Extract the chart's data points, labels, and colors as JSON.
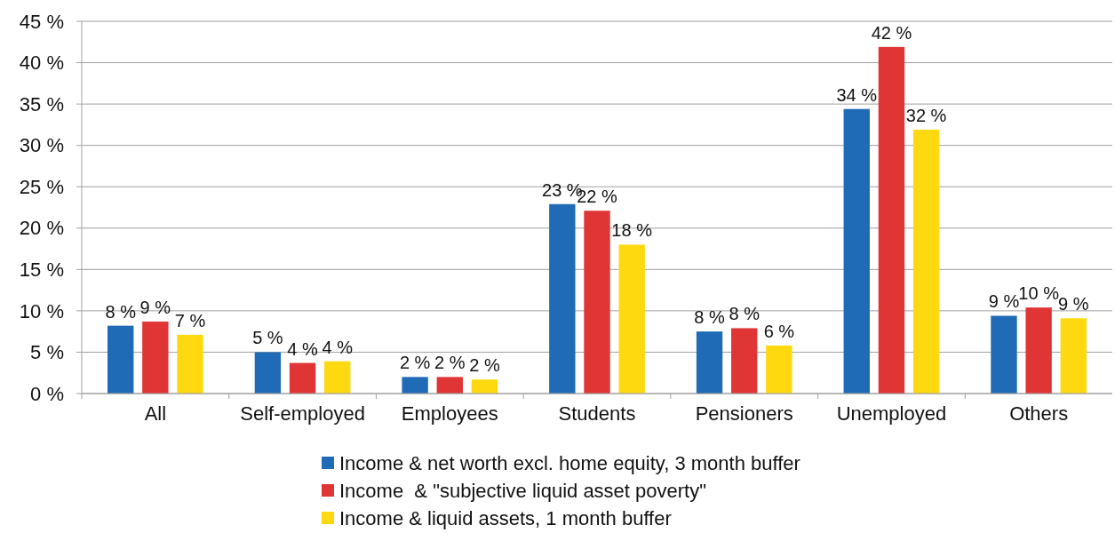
{
  "chart_data": {
    "type": "bar",
    "categories": [
      "All",
      "Self-employed",
      "Employees",
      "Students",
      "Pensioners",
      "Unemployed",
      "Others"
    ],
    "series": [
      {
        "name": "Income & net worth excl. home equity, 3 month buffer",
        "color": "#1f6bb5",
        "values": [
          8.2,
          5.0,
          2.0,
          22.9,
          7.5,
          34.4,
          9.4
        ],
        "value_labels": [
          "8 %",
          "5 %",
          "2 %",
          "23 %",
          "8 %",
          "34 %",
          "9 %"
        ]
      },
      {
        "name": "Income  & \"subjective liquid asset poverty\"",
        "color": "#e03535",
        "values": [
          8.7,
          3.7,
          2.0,
          22.1,
          7.9,
          41.9,
          10.4
        ],
        "value_labels": [
          "9 %",
          "4 %",
          "2 %",
          "22 %",
          "8 %",
          "42 %",
          "10 %"
        ]
      },
      {
        "name": "Income & liquid assets, 1 month buffer",
        "color": "#ffd90f",
        "values": [
          7.1,
          3.9,
          1.7,
          18.0,
          5.8,
          31.9,
          9.1
        ],
        "value_labels": [
          "7 %",
          "4 %",
          "2 %",
          "18 %",
          "6 %",
          "32 %",
          "9 %"
        ]
      }
    ],
    "ylim": [
      0,
      45
    ],
    "yticks": [
      {
        "value": 0,
        "label": "0 %"
      },
      {
        "value": 5,
        "label": "5 %"
      },
      {
        "value": 10,
        "label": "10 %"
      },
      {
        "value": 15,
        "label": "15 %"
      },
      {
        "value": 20,
        "label": "20 %"
      },
      {
        "value": 25,
        "label": "25 %"
      },
      {
        "value": 30,
        "label": "30 %"
      },
      {
        "value": 35,
        "label": "35 %"
      },
      {
        "value": 40,
        "label": "40 %"
      },
      {
        "value": 45,
        "label": "45 %"
      }
    ],
    "grid": "y",
    "legend": "bottom"
  }
}
